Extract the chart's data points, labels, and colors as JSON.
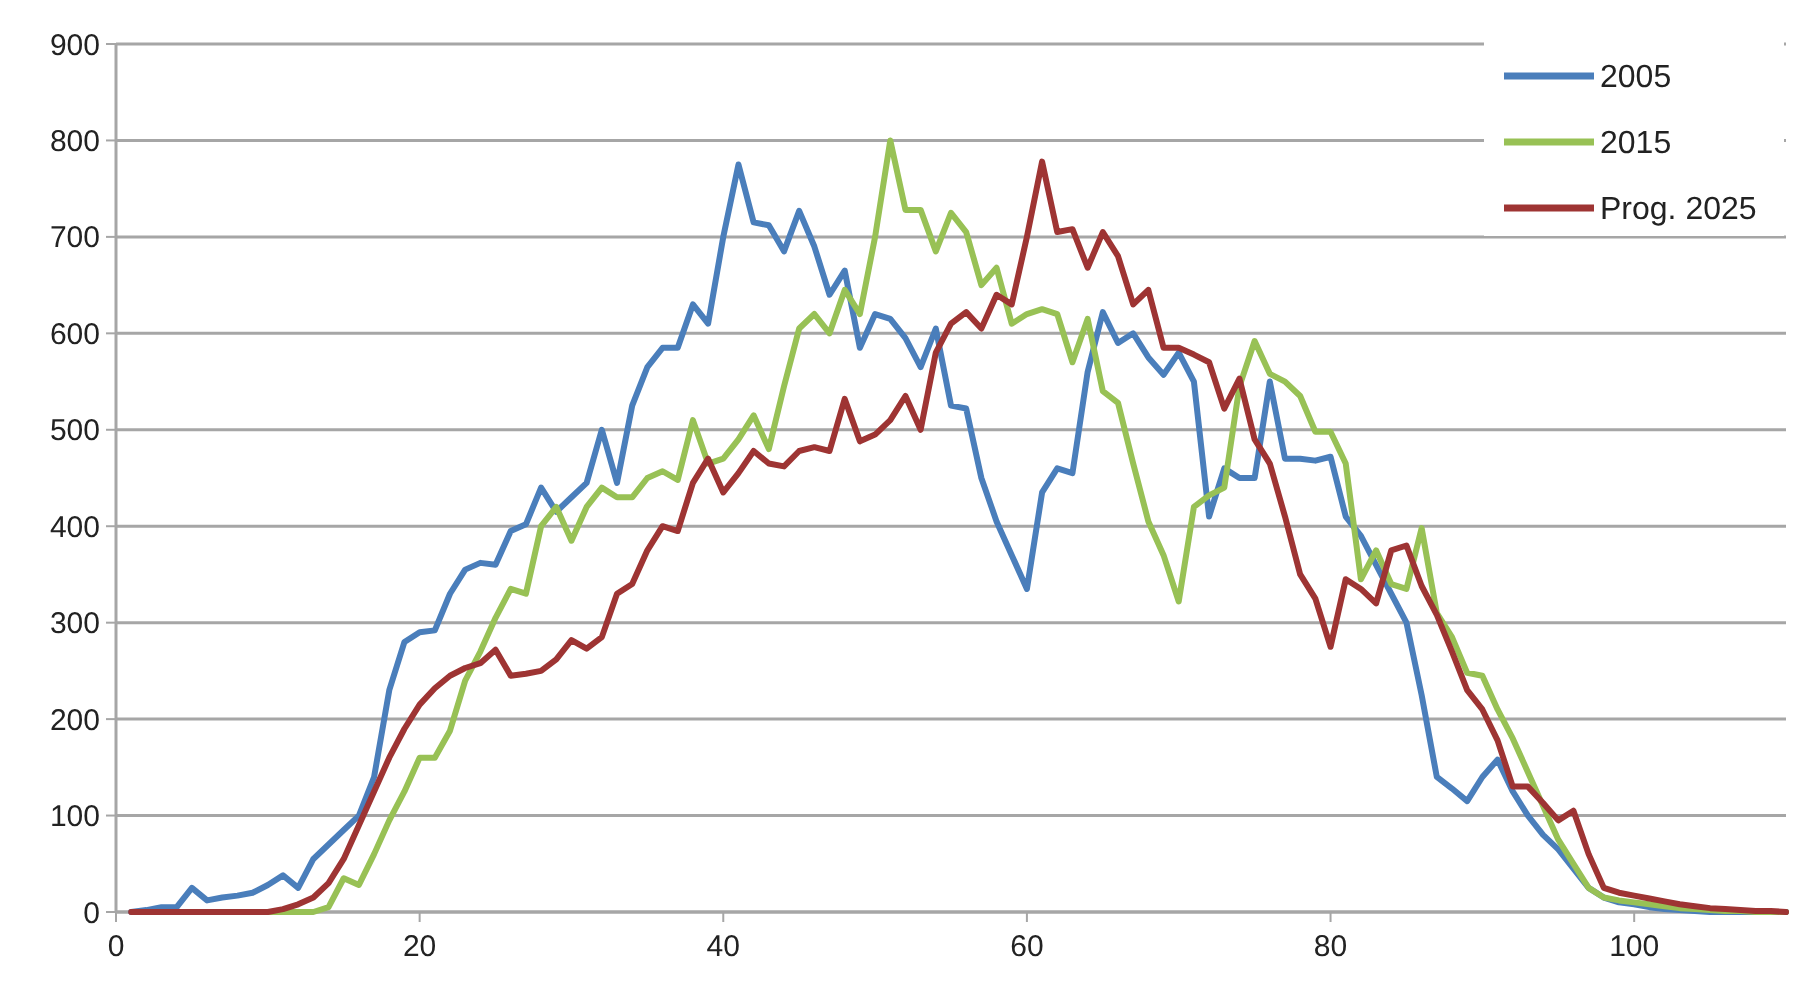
{
  "chart_data": {
    "type": "line",
    "x": [
      1,
      2,
      3,
      4,
      5,
      6,
      7,
      8,
      9,
      10,
      11,
      12,
      13,
      14,
      15,
      16,
      17,
      18,
      19,
      20,
      21,
      22,
      23,
      24,
      25,
      26,
      27,
      28,
      29,
      30,
      31,
      32,
      33,
      34,
      35,
      36,
      37,
      38,
      39,
      40,
      41,
      42,
      43,
      44,
      45,
      46,
      47,
      48,
      49,
      50,
      51,
      52,
      53,
      54,
      55,
      56,
      57,
      58,
      59,
      60,
      61,
      62,
      63,
      64,
      65,
      66,
      67,
      68,
      69,
      70,
      71,
      72,
      73,
      74,
      75,
      76,
      77,
      78,
      79,
      80,
      81,
      82,
      83,
      84,
      85,
      86,
      87,
      88,
      89,
      90,
      91,
      92,
      93,
      94,
      95,
      96,
      97,
      98,
      99,
      100,
      101,
      102,
      103,
      104,
      105,
      106,
      107,
      108,
      109,
      110
    ],
    "series": [
      {
        "name": "2005",
        "color": "#4a7ebb",
        "values": [
          0,
          2,
          5,
          5,
          25,
          12,
          15,
          17,
          20,
          28,
          38,
          25,
          55,
          70,
          85,
          100,
          140,
          230,
          280,
          290,
          292,
          330,
          355,
          362,
          360,
          395,
          402,
          440,
          415,
          430,
          445,
          500,
          445,
          525,
          565,
          585,
          585,
          630,
          610,
          700,
          775,
          715,
          712,
          685,
          727,
          690,
          640,
          665,
          585,
          620,
          615,
          595,
          565,
          605,
          525,
          522,
          450,
          405,
          370,
          335,
          435,
          460,
          455,
          560,
          622,
          590,
          600,
          575,
          557,
          580,
          550,
          410,
          460,
          450,
          450,
          550,
          470,
          470,
          468,
          472,
          410,
          390,
          360,
          330,
          300,
          225,
          140,
          128,
          115,
          140,
          158,
          125,
          100,
          80,
          65,
          45,
          25,
          15,
          10,
          8,
          5,
          3,
          2,
          1,
          0,
          0,
          0,
          0,
          0,
          0
        ]
      },
      {
        "name": "2015",
        "color": "#98c155",
        "values": [
          null,
          null,
          null,
          null,
          null,
          null,
          null,
          null,
          0,
          0,
          0,
          0,
          0,
          5,
          35,
          28,
          60,
          95,
          125,
          160,
          160,
          188,
          240,
          270,
          305,
          335,
          330,
          400,
          420,
          385,
          420,
          440,
          430,
          430,
          450,
          457,
          448,
          510,
          465,
          470,
          490,
          515,
          480,
          545,
          605,
          620,
          600,
          645,
          620,
          700,
          800,
          728,
          728,
          685,
          725,
          705,
          650,
          668,
          610,
          620,
          625,
          620,
          570,
          615,
          540,
          528,
          465,
          405,
          370,
          322,
          420,
          432,
          440,
          545,
          592,
          558,
          550,
          535,
          498,
          498,
          465,
          345,
          375,
          340,
          335,
          398,
          310,
          285,
          248,
          245,
          210,
          180,
          145,
          110,
          75,
          50,
          25,
          15,
          12,
          10,
          8,
          6,
          4,
          3,
          2,
          1,
          1,
          0,
          0,
          0
        ]
      },
      {
        "name": "Prog. 2025",
        "color": "#9e3433",
        "values": [
          0,
          0,
          0,
          0,
          0,
          0,
          0,
          0,
          0,
          0,
          3,
          8,
          15,
          30,
          55,
          90,
          125,
          160,
          190,
          215,
          232,
          245,
          253,
          258,
          272,
          245,
          247,
          250,
          262,
          282,
          273,
          285,
          330,
          340,
          375,
          400,
          395,
          445,
          470,
          435,
          455,
          478,
          465,
          462,
          478,
          482,
          478,
          532,
          488,
          495,
          510,
          535,
          500,
          580,
          610,
          622,
          605,
          640,
          630,
          700,
          778,
          705,
          708,
          668,
          705,
          680,
          630,
          645,
          585,
          585,
          578,
          570,
          522,
          553,
          490,
          465,
          410,
          350,
          325,
          275,
          345,
          335,
          320,
          375,
          380,
          338,
          308,
          270,
          230,
          210,
          178,
          130,
          130,
          113,
          95,
          105,
          60,
          25,
          20,
          17,
          14,
          11,
          8,
          6,
          4,
          3,
          2,
          1,
          1,
          0
        ]
      }
    ],
    "xlim": [
      0,
      110
    ],
    "xticks": [
      0,
      20,
      40,
      60,
      80,
      100
    ],
    "ylim": [
      0,
      900
    ],
    "yticks": [
      0,
      100,
      200,
      300,
      400,
      500,
      600,
      700,
      800,
      900
    ],
    "grid": "y",
    "legend": "top right",
    "marker": "none",
    "line_style": "solid"
  }
}
